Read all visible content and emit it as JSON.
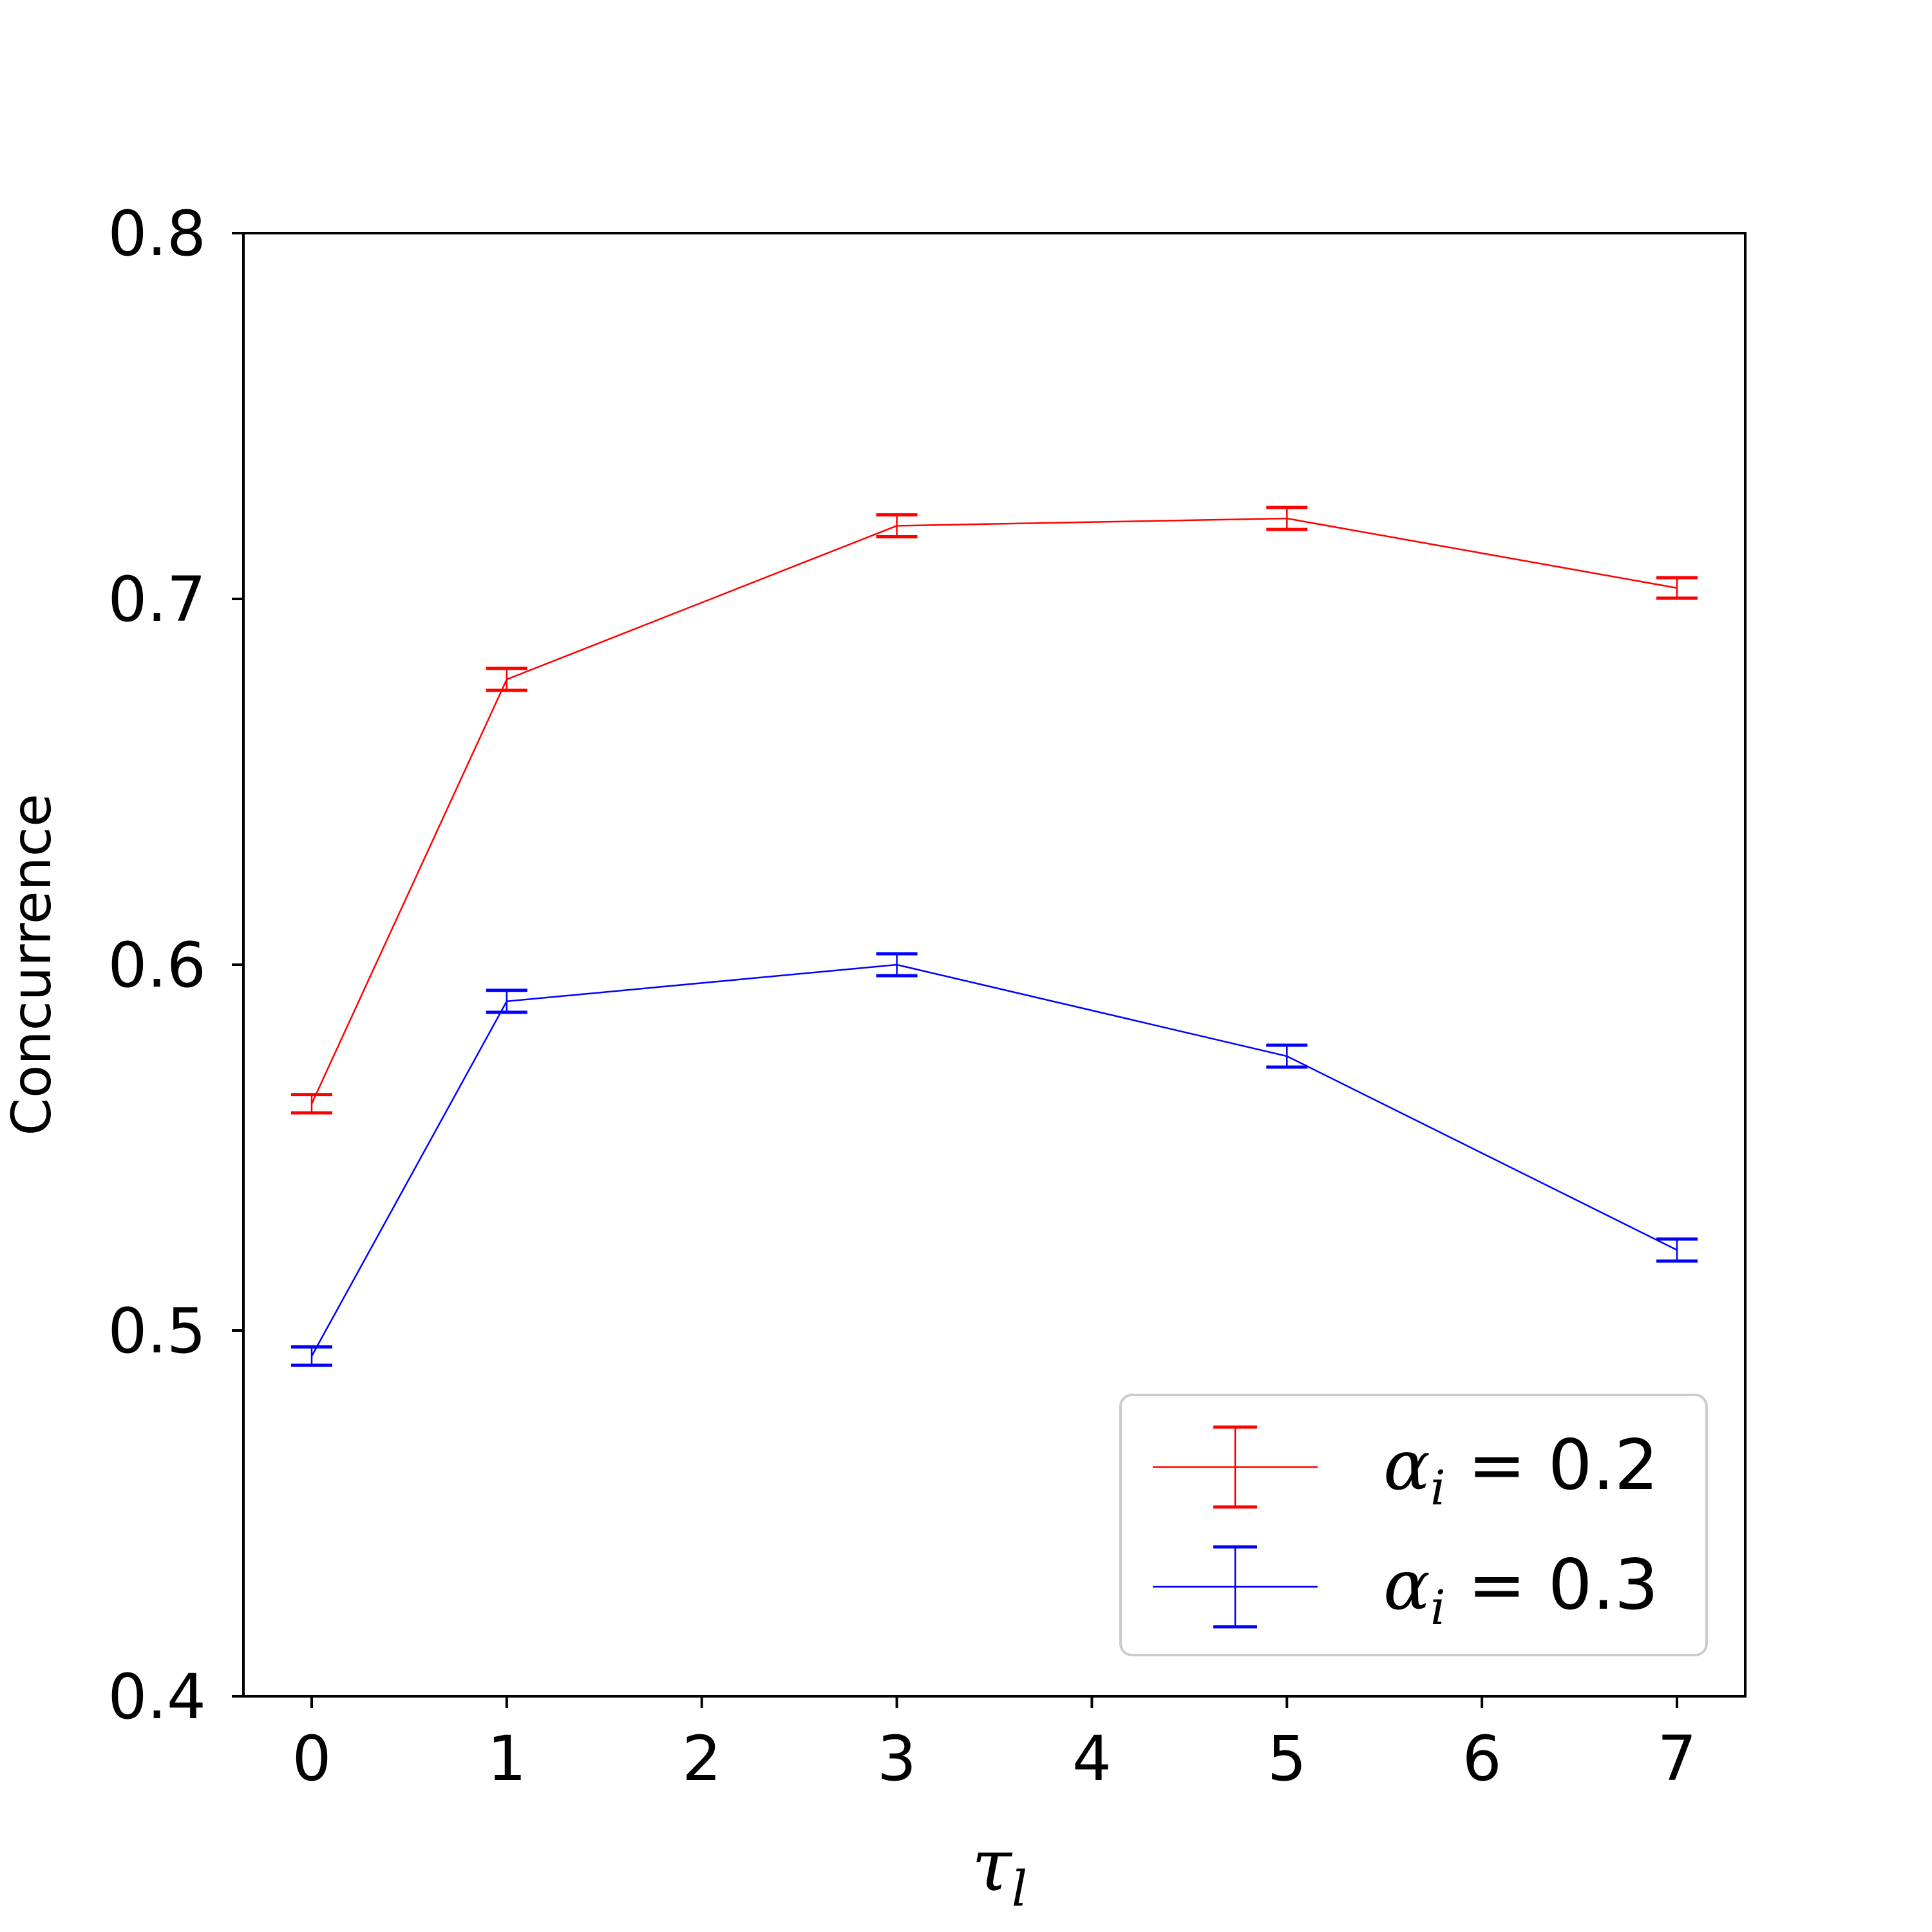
{
  "chart_data": {
    "type": "line",
    "title": "",
    "xlabel": {
      "symbol": "τ",
      "subscript": "l"
    },
    "ylabel": "Concurrence",
    "xlim": [
      -0.35,
      7.35
    ],
    "ylim": [
      0.4,
      0.8
    ],
    "x_ticks": [
      "0",
      "1",
      "2",
      "3",
      "4",
      "5",
      "6",
      "7"
    ],
    "y_ticks": [
      "0.4",
      "0.5",
      "0.6",
      "0.7",
      "0.8"
    ],
    "grid": false,
    "legend_position": "lower-right",
    "x": [
      0,
      1,
      3,
      5,
      7
    ],
    "series": [
      {
        "label": {
          "symbol": "α",
          "subscript": "i",
          "rest": " = 0.2"
        },
        "color": "#ff0000",
        "values": [
          0.562,
          0.678,
          0.72,
          0.722,
          0.703
        ],
        "errors": [
          0.0025,
          0.003,
          0.003,
          0.003,
          0.0028
        ]
      },
      {
        "label": {
          "symbol": "α",
          "subscript": "i",
          "rest": " = 0.3"
        },
        "color": "#0000ff",
        "values": [
          0.493,
          0.59,
          0.6,
          0.575,
          0.522
        ],
        "errors": [
          0.0025,
          0.003,
          0.003,
          0.003,
          0.003
        ]
      }
    ]
  }
}
